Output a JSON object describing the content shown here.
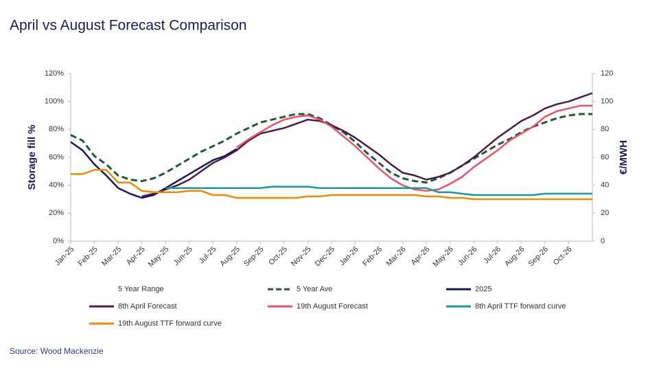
{
  "chart_data": {
    "type": "line",
    "title": "April vs August Forecast Comparison",
    "ylabel": "Storage fill %",
    "y2label": "€/MWH",
    "source": "Source: Wood Mackenzie",
    "x": [
      0,
      0.5,
      1,
      1.5,
      2,
      2.5,
      3,
      3.5,
      4,
      4.5,
      5,
      5.5,
      6,
      6.5,
      7,
      7.5,
      8,
      8.5,
      9,
      9.5,
      10,
      10.5,
      11,
      11.5,
      12,
      12.5,
      13,
      13.5,
      14,
      14.5,
      15,
      15.5,
      16,
      16.5,
      17,
      17.5,
      18,
      18.5,
      19,
      19.5,
      20,
      20.5,
      21,
      21.5,
      22
    ],
    "xlim": [
      0,
      22
    ],
    "xticks": [
      {
        "value": 0,
        "label": "Jan-25"
      },
      {
        "value": 1,
        "label": "Feb-25"
      },
      {
        "value": 2,
        "label": "Mar-25"
      },
      {
        "value": 3,
        "label": "Apr-25"
      },
      {
        "value": 4,
        "label": "May-25"
      },
      {
        "value": 5,
        "label": "Jun-25"
      },
      {
        "value": 6,
        "label": "Jul-25"
      },
      {
        "value": 7,
        "label": "Aug-25"
      },
      {
        "value": 8,
        "label": "Sep-25"
      },
      {
        "value": 9,
        "label": "Oct-25"
      },
      {
        "value": 10,
        "label": "Nov-25"
      },
      {
        "value": 11,
        "label": "Dec-25"
      },
      {
        "value": 12,
        "label": "Jan-26"
      },
      {
        "value": 13,
        "label": "Feb-26"
      },
      {
        "value": 14,
        "label": "Mar-26"
      },
      {
        "value": 15,
        "label": "Apr-26"
      },
      {
        "value": 16,
        "label": "May-26"
      },
      {
        "value": 17,
        "label": "Jun-26"
      },
      {
        "value": 18,
        "label": "Jul-26"
      },
      {
        "value": 19,
        "label": "Aug-26"
      },
      {
        "value": 20,
        "label": "Sep-26"
      },
      {
        "value": 21,
        "label": "Oct-26"
      }
    ],
    "ylim": [
      0,
      120
    ],
    "yticks": [
      {
        "value": 0,
        "label": "0%"
      },
      {
        "value": 20,
        "label": "20%"
      },
      {
        "value": 40,
        "label": "40%"
      },
      {
        "value": 60,
        "label": "60%"
      },
      {
        "value": 80,
        "label": "80%"
      },
      {
        "value": 100,
        "label": "100%"
      },
      {
        "value": 120,
        "label": "120%"
      }
    ],
    "y2lim": [
      0,
      120
    ],
    "y2ticks": [
      0,
      20,
      40,
      60,
      80,
      100,
      120
    ],
    "grid": false,
    "series": [
      {
        "name": "5 Year Range",
        "values": [
          null,
          null,
          null,
          null,
          null,
          null,
          null,
          null,
          null,
          null,
          null,
          null,
          null,
          null,
          null,
          null,
          null,
          null,
          null,
          null,
          null,
          null,
          null,
          null,
          null,
          null,
          null,
          null,
          null,
          null,
          null,
          null,
          null,
          null,
          null,
          null,
          null,
          null,
          null,
          null,
          null,
          null,
          null,
          null,
          null
        ]
      },
      {
        "name": "5 Year Ave",
        "color": "#1e5a32",
        "dashed": true,
        "values": [
          76,
          72,
          61,
          55,
          47,
          44,
          43,
          45,
          49,
          54,
          59,
          64,
          68,
          72,
          77,
          81,
          85,
          87,
          89,
          91,
          91,
          88,
          83,
          78,
          71,
          63,
          56,
          49,
          45,
          43,
          42,
          45,
          49,
          54,
          59,
          64,
          69,
          73,
          78,
          82,
          85,
          88,
          90,
          91,
          91
        ]
      },
      {
        "name": "2025",
        "color": "#16175a",
        "values": [
          71,
          65,
          55,
          47,
          38,
          34,
          31,
          33,
          38,
          43,
          48,
          53,
          58,
          61,
          66,
          null,
          null,
          null,
          null,
          null,
          null,
          null,
          null,
          null,
          null,
          null,
          null,
          null,
          null,
          null,
          null,
          null,
          null,
          null,
          null,
          null,
          null,
          null,
          null,
          null,
          null,
          null,
          null,
          null,
          null
        ]
      },
      {
        "name": "8th April Forecast",
        "color": "#4b1a45",
        "values": [
          null,
          null,
          null,
          null,
          null,
          null,
          32,
          34,
          37,
          40,
          44,
          50,
          56,
          60,
          65,
          72,
          77,
          79,
          81,
          84,
          87,
          86,
          83,
          79,
          74,
          68,
          62,
          55,
          49,
          47,
          44,
          46,
          49,
          54,
          60,
          67,
          74,
          80,
          86,
          90,
          95,
          98,
          100,
          103,
          106
        ]
      },
      {
        "name": "19th August Forecast",
        "color": "#ee4f6a",
        "values": [
          null,
          null,
          null,
          null,
          null,
          null,
          null,
          null,
          null,
          null,
          null,
          null,
          null,
          null,
          67,
          73,
          78,
          83,
          87,
          89,
          90,
          87,
          82,
          75,
          68,
          60,
          52,
          45,
          40,
          37,
          36,
          37,
          41,
          46,
          53,
          59,
          65,
          72,
          77,
          82,
          89,
          93,
          95,
          97,
          97
        ]
      },
      {
        "name": "8th April TTF forward curve",
        "color": "#17999a",
        "axis": "y2",
        "values": [
          null,
          null,
          null,
          null,
          null,
          null,
          null,
          null,
          38,
          38,
          38,
          38,
          38,
          38,
          38,
          38,
          38,
          39,
          39,
          39,
          39,
          38,
          38,
          38,
          38,
          38,
          38,
          38,
          38,
          38,
          38,
          35,
          35,
          34,
          33,
          33,
          33,
          33,
          33,
          33,
          34,
          34,
          34,
          34,
          34
        ]
      },
      {
        "name": "19th August TTF forward curve",
        "color": "#f28a00",
        "axis": "y2",
        "values": [
          48,
          48,
          51,
          51,
          42,
          42,
          36,
          35,
          35,
          35,
          36,
          36,
          33,
          33,
          31,
          31,
          31,
          31,
          31,
          31,
          32,
          32,
          33,
          33,
          33,
          33,
          33,
          33,
          33,
          33,
          32,
          32,
          31,
          31,
          30,
          30,
          30,
          30,
          30,
          30,
          30,
          30,
          30,
          30,
          30
        ]
      }
    ]
  }
}
